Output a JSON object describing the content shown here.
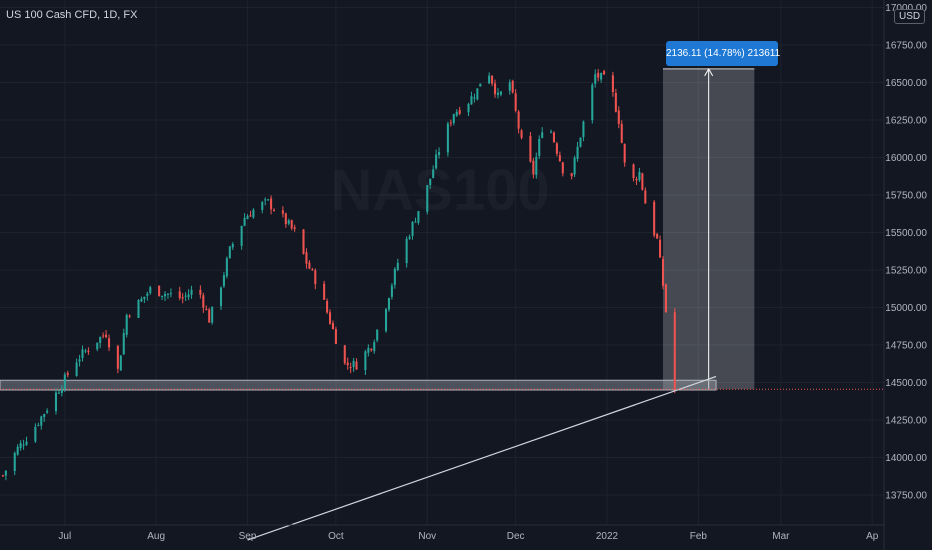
{
  "header": {
    "title": "US 100 Cash CFD, 1D, FX",
    "currency": "USD"
  },
  "watermark": "NAS100",
  "measure": {
    "label": "2136.11 (14.78%) 213611",
    "from": 14455,
    "to": 16591,
    "start_x": "2022-01-20",
    "end_x": "2022-02-20"
  },
  "support_band": {
    "low": 14450,
    "high": 14515
  },
  "current_price_line": 14455,
  "trendline": {
    "x1": "2021-09-01",
    "y1": 13450,
    "x2": "2022-02-07",
    "y2": 14540
  },
  "colors": {
    "background": "#131722",
    "up": "#26a69a",
    "down": "#ef5350",
    "grid": "#1e222d",
    "accent": "#1e78d4",
    "axis_text": "#b2b5be"
  },
  "chart_data": {
    "type": "candlestick",
    "title": "US 100 Cash CFD, 1D, FX",
    "x_axis_labels": [
      "Jul",
      "Aug",
      "Sep",
      "Oct",
      "Nov",
      "Dec",
      "2022",
      "Feb",
      "Mar",
      "Ap"
    ],
    "y_axis_labels": [
      "13750.00",
      "14000.00",
      "14250.00",
      "14500.00",
      "14750.00",
      "15000.00",
      "15250.00",
      "15500.00",
      "15750.00",
      "16000.00",
      "16250.00",
      "16500.00",
      "16750.00",
      "17000.00"
    ],
    "ylim": [
      13550,
      17050
    ],
    "grid": true,
    "x_range": [
      "2021-06-09",
      "2022-04-05"
    ],
    "series": [
      {
        "close": [
          {
            "date": "2021-06-10",
            "value": 13880
          },
          {
            "date": "2021-06-15",
            "value": 14060
          },
          {
            "date": "2021-06-20",
            "value": 14180
          },
          {
            "date": "2021-06-25",
            "value": 14330
          },
          {
            "date": "2021-06-30",
            "value": 14490
          },
          {
            "date": "2021-07-05",
            "value": 14650
          },
          {
            "date": "2021-07-10",
            "value": 14750
          },
          {
            "date": "2021-07-15",
            "value": 14830
          },
          {
            "date": "2021-07-19",
            "value": 14580
          },
          {
            "date": "2021-07-22",
            "value": 14950
          },
          {
            "date": "2021-07-27",
            "value": 15050
          },
          {
            "date": "2021-07-30",
            "value": 15120
          },
          {
            "date": "2021-08-05",
            "value": 15090
          },
          {
            "date": "2021-08-10",
            "value": 15060
          },
          {
            "date": "2021-08-15",
            "value": 15140
          },
          {
            "date": "2021-08-19",
            "value": 14920
          },
          {
            "date": "2021-08-22",
            "value": 15080
          },
          {
            "date": "2021-08-26",
            "value": 15380
          },
          {
            "date": "2021-08-31",
            "value": 15600
          },
          {
            "date": "2021-09-05",
            "value": 15680
          },
          {
            "date": "2021-09-08",
            "value": 15700
          },
          {
            "date": "2021-09-12",
            "value": 15620
          },
          {
            "date": "2021-09-17",
            "value": 15500
          },
          {
            "date": "2021-09-21",
            "value": 15300
          },
          {
            "date": "2021-09-25",
            "value": 15150
          },
          {
            "date": "2021-09-30",
            "value": 14850
          },
          {
            "date": "2021-10-04",
            "value": 14620
          },
          {
            "date": "2021-10-08",
            "value": 14620
          },
          {
            "date": "2021-10-13",
            "value": 14750
          },
          {
            "date": "2021-10-17",
            "value": 14950
          },
          {
            "date": "2021-10-22",
            "value": 15300
          },
          {
            "date": "2021-10-27",
            "value": 15550
          },
          {
            "date": "2021-11-01",
            "value": 15800
          },
          {
            "date": "2021-11-05",
            "value": 16050
          },
          {
            "date": "2021-11-10",
            "value": 16300
          },
          {
            "date": "2021-11-14",
            "value": 16350
          },
          {
            "date": "2021-11-18",
            "value": 16450
          },
          {
            "date": "2021-11-21",
            "value": 16620
          },
          {
            "date": "2021-11-25",
            "value": 16400
          },
          {
            "date": "2021-11-29",
            "value": 16500
          },
          {
            "date": "2021-12-03",
            "value": 16100
          },
          {
            "date": "2021-12-07",
            "value": 15900
          },
          {
            "date": "2021-12-11",
            "value": 16300
          },
          {
            "date": "2021-12-15",
            "value": 16050
          },
          {
            "date": "2021-12-19",
            "value": 15800
          },
          {
            "date": "2021-12-23",
            "value": 16150
          },
          {
            "date": "2021-12-28",
            "value": 16550
          },
          {
            "date": "2022-01-02",
            "value": 16500
          },
          {
            "date": "2022-01-05",
            "value": 16250
          },
          {
            "date": "2022-01-08",
            "value": 15800
          },
          {
            "date": "2022-01-12",
            "value": 15900
          },
          {
            "date": "2022-01-15",
            "value": 15600
          },
          {
            "date": "2022-01-18",
            "value": 15450
          },
          {
            "date": "2022-01-20",
            "value": 15150
          },
          {
            "date": "2022-01-22",
            "value": 14800
          },
          {
            "date": "2022-01-24",
            "value": 14455
          }
        ]
      }
    ]
  }
}
